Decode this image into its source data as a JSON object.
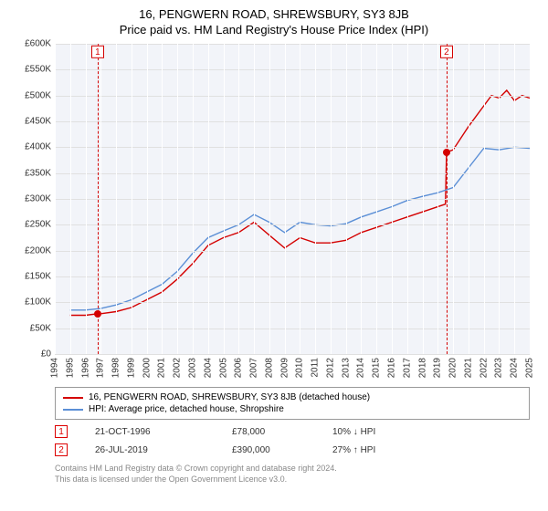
{
  "title": "16, PENGWERN ROAD, SHREWSBURY, SY3 8JB",
  "subtitle": "Price paid vs. HM Land Registry's House Price Index (HPI)",
  "chart": {
    "type": "line",
    "background_color": "#ffffff",
    "plot_bg_color": "#f2f4f9",
    "grid_color": "#e0e0e0",
    "ylim": [
      0,
      600000
    ],
    "ytick_step": 50000,
    "ytick_format_prefix": "£",
    "ytick_format_suffix": "K",
    "xlim": [
      1994,
      2025
    ],
    "years": [
      1994,
      1995,
      1996,
      1997,
      1998,
      1999,
      2000,
      2001,
      2002,
      2003,
      2004,
      2005,
      2006,
      2007,
      2008,
      2009,
      2010,
      2011,
      2012,
      2013,
      2014,
      2015,
      2016,
      2017,
      2018,
      2019,
      2020,
      2021,
      2022,
      2023,
      2024,
      2025
    ],
    "series": [
      {
        "name": "property",
        "label": "16, PENGWERN ROAD, SHREWSBURY, SY3 8JB (detached house)",
        "color": "#d40000",
        "line_width": 1.4,
        "data": [
          [
            1995,
            75000
          ],
          [
            1996,
            75000
          ],
          [
            1996.8,
            78000
          ],
          [
            1997,
            78000
          ],
          [
            1998,
            82000
          ],
          [
            1999,
            90000
          ],
          [
            2000,
            105000
          ],
          [
            2001,
            120000
          ],
          [
            2002,
            145000
          ],
          [
            2003,
            175000
          ],
          [
            2004,
            210000
          ],
          [
            2005,
            225000
          ],
          [
            2006,
            235000
          ],
          [
            2007,
            255000
          ],
          [
            2008,
            230000
          ],
          [
            2009,
            205000
          ],
          [
            2010,
            225000
          ],
          [
            2011,
            215000
          ],
          [
            2012,
            215000
          ],
          [
            2013,
            220000
          ],
          [
            2014,
            235000
          ],
          [
            2015,
            245000
          ],
          [
            2016,
            255000
          ],
          [
            2017,
            265000
          ],
          [
            2018,
            275000
          ],
          [
            2019.5,
            290000
          ],
          [
            2019.57,
            390000
          ],
          [
            2020,
            395000
          ],
          [
            2021,
            440000
          ],
          [
            2022,
            480000
          ],
          [
            2022.5,
            500000
          ],
          [
            2023,
            495000
          ],
          [
            2023.5,
            510000
          ],
          [
            2024,
            490000
          ],
          [
            2024.5,
            500000
          ],
          [
            2025,
            495000
          ]
        ]
      },
      {
        "name": "hpi",
        "label": "HPI: Average price, detached house, Shropshire",
        "color": "#5b8fd6",
        "line_width": 1.4,
        "data": [
          [
            1995,
            85000
          ],
          [
            1996,
            85000
          ],
          [
            1997,
            88000
          ],
          [
            1998,
            95000
          ],
          [
            1999,
            105000
          ],
          [
            2000,
            120000
          ],
          [
            2001,
            135000
          ],
          [
            2002,
            160000
          ],
          [
            2003,
            195000
          ],
          [
            2004,
            225000
          ],
          [
            2005,
            238000
          ],
          [
            2006,
            250000
          ],
          [
            2007,
            270000
          ],
          [
            2008,
            255000
          ],
          [
            2009,
            235000
          ],
          [
            2010,
            255000
          ],
          [
            2011,
            250000
          ],
          [
            2012,
            248000
          ],
          [
            2013,
            252000
          ],
          [
            2014,
            265000
          ],
          [
            2015,
            275000
          ],
          [
            2016,
            285000
          ],
          [
            2017,
            297000
          ],
          [
            2018,
            305000
          ],
          [
            2019,
            312000
          ],
          [
            2020,
            322000
          ],
          [
            2021,
            360000
          ],
          [
            2022,
            398000
          ],
          [
            2023,
            395000
          ],
          [
            2024,
            400000
          ],
          [
            2025,
            398000
          ]
        ]
      }
    ],
    "markers": [
      {
        "x": 1996.8,
        "y": 78000,
        "badge": "1",
        "color": "#d40000"
      },
      {
        "x": 2019.57,
        "y": 390000,
        "badge": "2",
        "color": "#d40000"
      }
    ]
  },
  "legend": {
    "items": [
      {
        "color": "#d40000",
        "label": "16, PENGWERN ROAD, SHREWSBURY, SY3 8JB (detached house)"
      },
      {
        "color": "#5b8fd6",
        "label": "HPI: Average price, detached house, Shropshire"
      }
    ]
  },
  "events": [
    {
      "badge": "1",
      "date": "21-OCT-1996",
      "price": "£78,000",
      "pct": "10% ↓ HPI"
    },
    {
      "badge": "2",
      "date": "26-JUL-2019",
      "price": "£390,000",
      "pct": "27% ↑ HPI"
    }
  ],
  "footer": {
    "line1": "Contains HM Land Registry data © Crown copyright and database right 2024.",
    "line2": "This data is licensed under the Open Government Licence v3.0."
  }
}
